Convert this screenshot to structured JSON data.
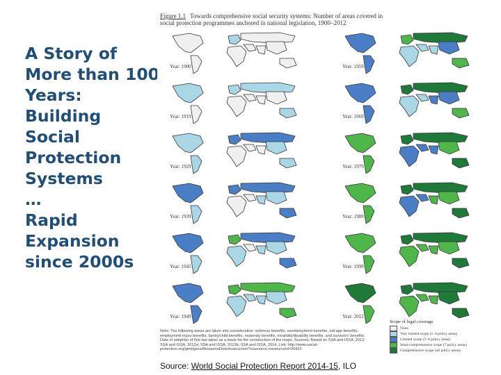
{
  "title": {
    "lines": [
      "A Story of",
      "More than 100",
      "Years:",
      "Building",
      "Social",
      "Protection",
      "Systems",
      "…",
      "Rapid",
      "Expansion",
      "since 2000s"
    ]
  },
  "figure": {
    "caption_label": "Figure 1.1",
    "caption_text": "Towards comprehensive social security systems: Number of areas covered in social protection programmes anchored in national legislation, 1900–2012",
    "maps": [
      {
        "year_label": "Year: 1900"
      },
      {
        "year_label": "Year: 1959"
      },
      {
        "year_label": "Year: 1919"
      },
      {
        "year_label": "Year: 1969"
      },
      {
        "year_label": "Year: 1929"
      },
      {
        "year_label": "Year: 1979"
      },
      {
        "year_label": "Year: 1939"
      },
      {
        "year_label": "Year: 1989"
      },
      {
        "year_label": "Year: 1945"
      },
      {
        "year_label": "Year: 1999"
      },
      {
        "year_label": "Year: 1949"
      },
      {
        "year_label": "Year: 2012"
      }
    ],
    "note": "Note: The following areas are taken into consideration: sickness benefits, unemployment benefits, old-age benefits, employment injury benefits, family/child benefits, maternity benefits, invalidity/disability benefits, and survivors' benefits. Date of adoption of first law taken as a basis for the construction of the maps. Sources: Based on SSA and ISSA, 2012; SSA and ISSA, 2012a; SSA and ISSA, 2013b; SSA and ISSA, 2014. Link: http://www.social-protection.org/gimi/gess/ResourceDownload.action?ressource.ressourceId=26423",
    "legend": {
      "title": "Scope of legal coverage",
      "items": [
        {
          "label": "None",
          "color": "#f0f0f0"
        },
        {
          "label": "Very limited scope (1–4 policy areas)",
          "color": "#a9d7e6"
        },
        {
          "label": "Limited scope (5–6 policy areas)",
          "color": "#4a7fc8"
        },
        {
          "label": "Semi-comprehensive scope (7 policy areas)",
          "color": "#4fb64a"
        },
        {
          "label": "Comprehensive scope (all policy areas)",
          "color": "#1f7a3a"
        }
      ]
    }
  },
  "source": {
    "prefix": "Source: ",
    "link_text": "World Social Protection Report 2014-15",
    "suffix": ", ILO"
  }
}
